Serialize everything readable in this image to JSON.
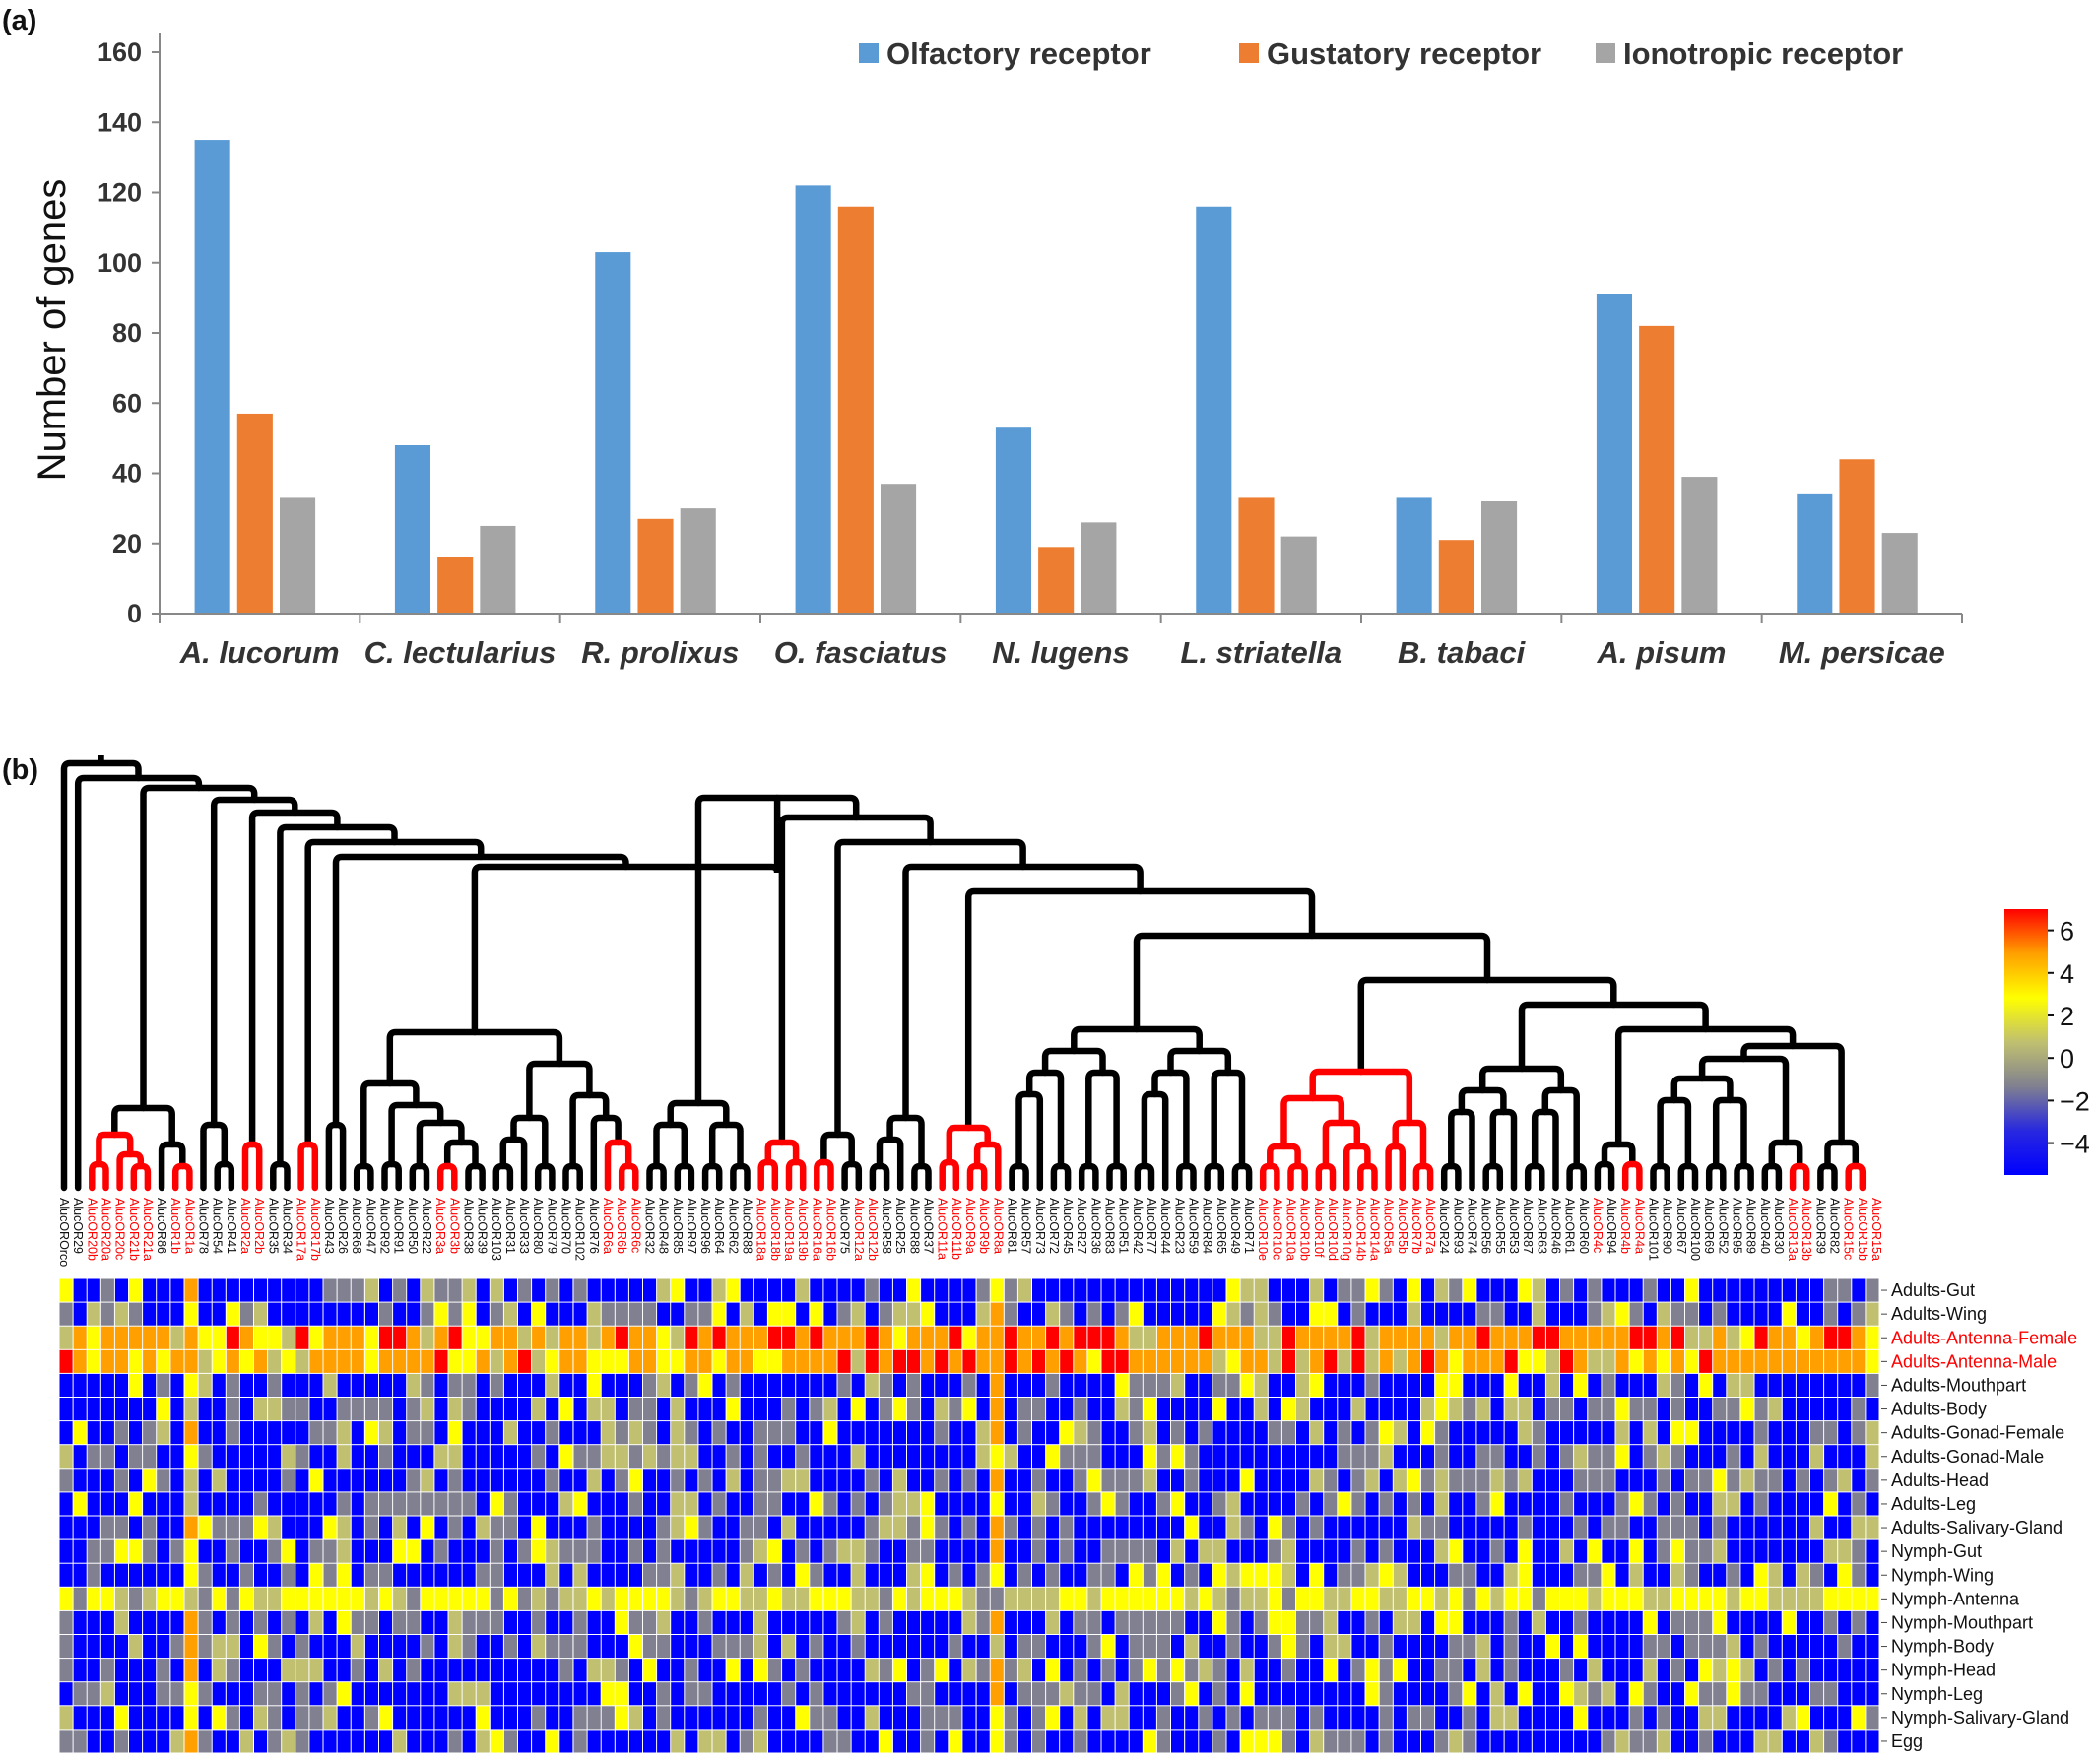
{
  "panel_a_label": "(a)",
  "panel_b_label": "(b)",
  "chart_data": [
    {
      "type": "bar",
      "ylabel": "Number of genes",
      "ylim": [
        0,
        160
      ],
      "yticks": [
        0,
        20,
        40,
        60,
        80,
        100,
        120,
        140,
        160
      ],
      "grid": false,
      "legend_position": "top-right",
      "categories": [
        "A. lucorum",
        "C. lectularius",
        "R. prolixus",
        "O. fasciatus",
        "N. lugens",
        "L. striatella",
        "B. tabaci",
        "A. pisum",
        "M. persicae"
      ],
      "series": [
        {
          "name": "Olfactory receptor",
          "color": "#5B9BD5",
          "values": [
            135,
            48,
            103,
            122,
            53,
            116,
            33,
            91,
            34
          ]
        },
        {
          "name": "Gustatory receptor",
          "color": "#ED7D31",
          "values": [
            57,
            16,
            27,
            116,
            19,
            33,
            21,
            82,
            44
          ]
        },
        {
          "name": "Ionotropic receptor",
          "color": "#A5A5A5",
          "values": [
            33,
            25,
            30,
            37,
            26,
            22,
            32,
            39,
            23
          ]
        }
      ]
    },
    {
      "type": "heatmap",
      "genes": [
        "AlucOROrco",
        "AlucOR29",
        "AlucOR20b",
        "AlucOR20a",
        "AlucOR20c",
        "AlucOR21b",
        "AlucOR21a",
        "AlucOR86",
        "AlucOR1b",
        "AlucOR1a",
        "AlucOR78",
        "AlucOR54",
        "AlucOR41",
        "AlucOR2a",
        "AlucOR2b",
        "AlucOR35",
        "AlucOR34",
        "AlucOR17a",
        "AlucOR17b",
        "AlucOR43",
        "AlucOR26",
        "AlucOR68",
        "AlucOR47",
        "AlucOR92",
        "AlucOR91",
        "AlucOR50",
        "AlucOR22",
        "AlucOR3a",
        "AlucOR3b",
        "AlucOR38",
        "AlucOR39",
        "AlucOR103",
        "AlucOR31",
        "AlucOR33",
        "AlucOR80",
        "AlucOR79",
        "AlucOR70",
        "AlucOR102",
        "AlucOR76",
        "AlucOR6a",
        "AlucOR6b",
        "AlucOR6c",
        "AlucOR32",
        "AlucOR48",
        "AlucOR85",
        "AlucOR97",
        "AlucOR96",
        "AlucOR64",
        "AlucOR62",
        "AlucOR88",
        "AlucOR18a",
        "AlucOR18b",
        "AlucOR19a",
        "AlucOR19b",
        "AlucOR16a",
        "AlucOR16b",
        "AlucOR75",
        "AlucOR12a",
        "AlucOR12b",
        "AlucOR58",
        "AlucOR25",
        "AlucOR88",
        "AlucOR37",
        "AlucOR11a",
        "AlucOR11b",
        "AlucOR9a",
        "AlucOR9b",
        "AlucOR8a",
        "AlucOR81",
        "AlucOR57",
        "AlucOR73",
        "AlucOR72",
        "AlucOR45",
        "AlucOR27",
        "AlucOR36",
        "AlucOR83",
        "AlucOR51",
        "AlucOR42",
        "AlucOR77",
        "AlucOR44",
        "AlucOR23",
        "AlucOR59",
        "AlucOR84",
        "AlucOR65",
        "AlucOR49",
        "AlucOR71",
        "AlucOR10e",
        "AlucOR10c",
        "AlucOR10a",
        "AlucOR10b",
        "AlucOR10f",
        "AlucOR10d",
        "AlucOR10g",
        "AlucOR14b",
        "AlucOR14a",
        "AlucOR5a",
        "AlucOR5b",
        "AlucOR7b",
        "AlucOR7a",
        "AlucOR24",
        "AlucOR93",
        "AlucOR74",
        "AlucOR56",
        "AlucOR55",
        "AlucOR53",
        "AlucOR87",
        "AlucOR63",
        "AlucOR46",
        "AlucOR61",
        "AlucOR60",
        "AlucOR4c",
        "AlucOR94",
        "AlucOR4b",
        "AlucOR4a",
        "AlucOR101",
        "AlucOR90",
        "AlucOR67",
        "AlucOR100",
        "AlucOR69",
        "AlucOR52",
        "AlucOR95",
        "AlucOR89",
        "AlucOR40",
        "AlucOR30",
        "AlucOR13a",
        "AlucOR13b",
        "AlucOR39",
        "AlucOR82",
        "AlucOR15c",
        "AlucOR15b",
        "AlucOR15a"
      ],
      "highlighted_genes": [
        "AlucOR20b",
        "AlucOR20a",
        "AlucOR20c",
        "AlucOR21b",
        "AlucOR21a",
        "AlucOR1b",
        "AlucOR1a",
        "AlucOR2a",
        "AlucOR2b",
        "AlucOR17a",
        "AlucOR17b",
        "AlucOR3a",
        "AlucOR3b",
        "AlucOR6a",
        "AlucOR6b",
        "AlucOR6c",
        "AlucOR18a",
        "AlucOR18b",
        "AlucOR19a",
        "AlucOR19b",
        "AlucOR16a",
        "AlucOR16b",
        "AlucOR12a",
        "AlucOR12b",
        "AlucOR11a",
        "AlucOR11b",
        "AlucOR9a",
        "AlucOR9b",
        "AlucOR8a",
        "AlucOR10e",
        "AlucOR10c",
        "AlucOR10a",
        "AlucOR10b",
        "AlucOR10f",
        "AlucOR10d",
        "AlucOR10g",
        "AlucOR14b",
        "AlucOR14a",
        "AlucOR5a",
        "AlucOR5b",
        "AlucOR7b",
        "AlucOR7a",
        "AlucOR4c",
        "AlucOR4b",
        "AlucOR4a",
        "AlucOR13a",
        "AlucOR13b",
        "AlucOR15c",
        "AlucOR15b",
        "AlucOR15a"
      ],
      "tissues": [
        "Adults-Gut",
        "Adults-Wing",
        "Adults-Antenna-Female",
        "Adults-Antenna-Male",
        "Adults-Mouthpart",
        "Adults-Body",
        "Adults-Gonad-Female",
        "Adults-Gonad-Male",
        "Adults-Head",
        "Adults-Leg",
        "Adults-Salivary-Gland",
        "Nymph-Gut",
        "Nymph-Wing",
        "Nymph-Antenna",
        "Nymph-Mouthpart",
        "Nymph-Body",
        "Nymph-Head",
        "Nymph-Leg",
        "Nymph-Salivary-Gland",
        "Egg"
      ],
      "highlighted_tissues": [
        "Adults-Antenna-Female",
        "Adults-Antenna-Male"
      ],
      "colorbar": {
        "ticks": [
          6,
          4,
          2,
          0,
          -2,
          -4
        ],
        "range": [
          -5.5,
          7
        ],
        "colors": [
          "#0000ff",
          "#2828e0",
          "#808090",
          "#c0c070",
          "#ffff00",
          "#ffa000",
          "#ff0000"
        ]
      },
      "highlight_color": "#ff0000",
      "default_color": "#000000"
    }
  ]
}
